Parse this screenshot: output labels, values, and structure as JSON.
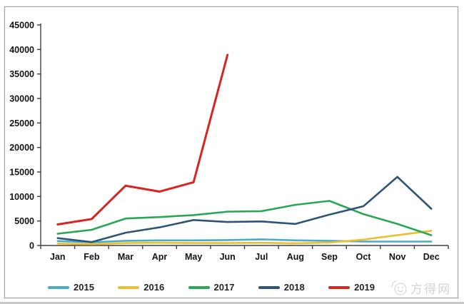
{
  "watermark": {
    "text": "方得网",
    "icon": "smiley-face-icon",
    "color": "#d9d9d9"
  },
  "chart_data": {
    "type": "line",
    "title": "",
    "xlabel": "",
    "ylabel": "",
    "categories": [
      "Jan",
      "Feb",
      "Mar",
      "Apr",
      "May",
      "Jun",
      "Jul",
      "Aug",
      "Sep",
      "Oct",
      "Nov",
      "Dec"
    ],
    "series": [
      {
        "name": "2015",
        "color": "#4BACC6",
        "values": [
          900,
          650,
          950,
          1050,
          1050,
          1100,
          1250,
          1050,
          950,
          800,
          800,
          800
        ]
      },
      {
        "name": "2016",
        "color": "#EDBE2E",
        "values": [
          400,
          250,
          500,
          550,
          500,
          500,
          550,
          450,
          600,
          1200,
          2100,
          3000
        ]
      },
      {
        "name": "2017",
        "color": "#2AA755",
        "values": [
          2400,
          3200,
          5500,
          5800,
          6200,
          6900,
          7000,
          8300,
          9100,
          6400,
          4400,
          2100
        ]
      },
      {
        "name": "2018",
        "color": "#2E547A",
        "values": [
          1500,
          700,
          2600,
          3700,
          5200,
          4800,
          4900,
          4400,
          6300,
          8000,
          14000,
          7500
        ]
      },
      {
        "name": "2019",
        "color": "#DB2422",
        "values": [
          4300,
          5400,
          12200,
          11000,
          12900,
          38900
        ]
      }
    ],
    "ylim": [
      0,
      45000
    ],
    "ytick_step": 5000,
    "yticks": [
      0,
      5000,
      10000,
      15000,
      20000,
      25000,
      30000,
      35000,
      40000,
      45000
    ],
    "grid": false,
    "legend_position": "bottom",
    "axis_color": "#3f3f3f"
  }
}
